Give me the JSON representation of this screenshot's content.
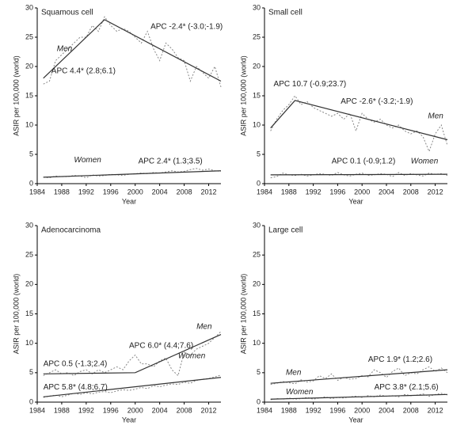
{
  "chart_data": [
    {
      "type": "line",
      "title": "Squamous cell",
      "xlabel": "Year",
      "ylabel": "ASIR per 100,000 (world)",
      "x": [
        1985,
        1986,
        1987,
        1988,
        1989,
        1990,
        1991,
        1992,
        1993,
        1994,
        1995,
        1996,
        1997,
        1998,
        1999,
        2000,
        2001,
        2002,
        2003,
        2004,
        2005,
        2006,
        2007,
        2008,
        2009,
        2010,
        2011,
        2012,
        2013,
        2014
      ],
      "xlim": [
        1984,
        2014
      ],
      "xticks": [
        1984,
        1988,
        1992,
        1996,
        2000,
        2004,
        2008,
        2012
      ],
      "ylim": [
        0,
        30
      ],
      "yticks": [
        0,
        5,
        10,
        15,
        20,
        25,
        30
      ],
      "series": [
        {
          "name": "Men",
          "color": "#333333",
          "values": [
            17,
            17.5,
            21,
            22,
            23,
            24,
            25,
            25,
            27,
            26,
            28.5,
            27,
            26,
            26.5,
            26,
            25,
            24,
            26,
            23,
            21,
            24,
            23,
            21.5,
            21,
            17.5,
            20,
            19,
            18,
            20,
            16.5
          ],
          "trend_x": [
            1985,
            1995,
            2014
          ],
          "trend_values": [
            18,
            28,
            17.5
          ]
        },
        {
          "name": "Women",
          "color": "#333333",
          "values": [
            1.1,
            1.0,
            1.3,
            1.2,
            1.2,
            1.4,
            1.3,
            1.0,
            1.5,
            1.3,
            1.4,
            1.6,
            1.5,
            1.4,
            1.6,
            1.7,
            1.8,
            1.7,
            1.9,
            1.8,
            2.0,
            2.2,
            2.0,
            2.1,
            2.4,
            2.6,
            2.3,
            2.5,
            2.2,
            2.1
          ],
          "trend_x": [
            1985,
            2014
          ],
          "trend_values": [
            1.1,
            2.2
          ]
        }
      ],
      "annotations": [
        "APC 4.4* (2.8;6.1)",
        "APC -2.4* (-3.0;-1.9)",
        "APC 2.4* (1.3;3.5)"
      ]
    },
    {
      "type": "line",
      "title": "Small cell",
      "xlabel": "Year",
      "ylabel": "ASIR per 100,000 (world)",
      "x": [
        1985,
        1986,
        1987,
        1988,
        1989,
        1990,
        1991,
        1992,
        1993,
        1994,
        1995,
        1996,
        1997,
        1998,
        1999,
        2000,
        2001,
        2002,
        2003,
        2004,
        2005,
        2006,
        2007,
        2008,
        2009,
        2010,
        2011,
        2012,
        2013,
        2014
      ],
      "xlim": [
        1984,
        2014
      ],
      "xticks": [
        1984,
        1988,
        1992,
        1996,
        2000,
        2004,
        2008,
        2012
      ],
      "ylim": [
        0,
        30
      ],
      "yticks": [
        0,
        5,
        10,
        15,
        20,
        25,
        30
      ],
      "series": [
        {
          "name": "Men",
          "color": "#333333",
          "values": [
            9,
            11,
            12.5,
            13.5,
            15,
            13.5,
            14,
            13,
            12.5,
            12,
            11.5,
            12,
            11,
            12,
            9,
            12,
            11,
            10.5,
            11,
            10,
            9.5,
            10,
            9,
            8.5,
            9,
            8,
            5.5,
            8.5,
            10,
            6.5
          ],
          "trend_x": [
            1985,
            1989,
            2014
          ],
          "trend_values": [
            9.5,
            14.2,
            7.5
          ]
        },
        {
          "name": "Women",
          "color": "#333333",
          "values": [
            1.0,
            1.2,
            1.8,
            1.5,
            1.4,
            1.6,
            1.3,
            1.5,
            1.7,
            1.6,
            1.4,
            1.9,
            1.5,
            1.3,
            1.6,
            1.8,
            1.4,
            1.5,
            1.7,
            1.6,
            1.2,
            1.9,
            1.4,
            1.7,
            1.5,
            1.3,
            1.8,
            1.6,
            1.7,
            1.4
          ],
          "trend_x": [
            1985,
            2014
          ],
          "trend_values": [
            1.5,
            1.6
          ]
        }
      ],
      "annotations": [
        "APC 10.7 (-0.9;23.7)",
        "APC -2.6* (-3.2;-1.9)",
        "APC 0.1 (-0.9;1.2)"
      ]
    },
    {
      "type": "line",
      "title": "Adenocarcinoma",
      "xlabel": "Year",
      "ylabel": "ASIR per 100,000 (world)",
      "x": [
        1985,
        1986,
        1987,
        1988,
        1989,
        1990,
        1991,
        1992,
        1993,
        1994,
        1995,
        1996,
        1997,
        1998,
        1999,
        2000,
        2001,
        2002,
        2003,
        2004,
        2005,
        2006,
        2007,
        2008,
        2009,
        2010,
        2011,
        2012,
        2013,
        2014
      ],
      "xlim": [
        1984,
        2014
      ],
      "xticks": [
        1984,
        1988,
        1992,
        1996,
        2000,
        2004,
        2008,
        2012
      ],
      "ylim": [
        0,
        30
      ],
      "yticks": [
        0,
        5,
        10,
        15,
        20,
        25,
        30
      ],
      "series": [
        {
          "name": "Men",
          "color": "#333333",
          "values": [
            4.5,
            5,
            5.5,
            4.8,
            5,
            4.5,
            5.2,
            5.5,
            4.8,
            5.5,
            5,
            5.5,
            6,
            5.5,
            7,
            8,
            6.5,
            6.5,
            6,
            7,
            7.5,
            5.5,
            4.5,
            8.5,
            8,
            9,
            9.5,
            10,
            11,
            12
          ],
          "trend_x": [
            1985,
            2000,
            2014
          ],
          "trend_values": [
            4.8,
            5.0,
            11.5
          ]
        },
        {
          "name": "Women",
          "color": "#333333",
          "values": [
            0.8,
            1,
            1.2,
            0.9,
            1.2,
            1.5,
            1.3,
            1.6,
            1.4,
            1.7,
            1.8,
            1.6,
            1.9,
            2.1,
            2.0,
            2.2,
            2.5,
            2.3,
            2.8,
            2.6,
            2.9,
            3.1,
            3.0,
            3.4,
            3.2,
            3.7,
            3.9,
            4.0,
            4.3,
            4.6
          ],
          "trend_x": [
            1985,
            2014
          ],
          "trend_values": [
            0.9,
            4.2
          ]
        }
      ],
      "annotations": [
        "APC 0.5 (-1.3;2.4)",
        "APC 6.0* (4.4;7.6)",
        "APC 5.8* (4.8;6.7)"
      ]
    },
    {
      "type": "line",
      "title": "Large cell",
      "xlabel": "Year",
      "ylabel": "ASIR per 100,000 (world)",
      "x": [
        1985,
        1986,
        1987,
        1988,
        1989,
        1990,
        1991,
        1992,
        1993,
        1994,
        1995,
        1996,
        1997,
        1998,
        1999,
        2000,
        2001,
        2002,
        2003,
        2004,
        2005,
        2006,
        2007,
        2008,
        2009,
        2010,
        2011,
        2012,
        2013,
        2014
      ],
      "xlim": [
        1984,
        2014
      ],
      "xticks": [
        1984,
        1988,
        1992,
        1996,
        2000,
        2004,
        2008,
        2012
      ],
      "ylim": [
        0,
        30
      ],
      "yticks": [
        0,
        5,
        10,
        15,
        20,
        25,
        30
      ],
      "series": [
        {
          "name": "Men",
          "color": "#333333",
          "values": [
            3,
            3.2,
            3.5,
            3.3,
            3.1,
            3.8,
            3.4,
            3.6,
            4.5,
            4.0,
            4.8,
            3.7,
            4.2,
            3.9,
            4.0,
            4.5,
            4.3,
            5.5,
            5.0,
            4.2,
            5.2,
            5.8,
            4.5,
            5.0,
            4.8,
            5.5,
            6.0,
            5.2,
            5.8,
            5.0
          ],
          "trend_x": [
            1985,
            2014
          ],
          "trend_values": [
            3.2,
            5.5
          ]
        },
        {
          "name": "Women",
          "color": "#333333",
          "values": [
            0.4,
            0.6,
            0.5,
            0.7,
            0.5,
            0.6,
            0.8,
            0.5,
            0.7,
            0.9,
            0.6,
            0.8,
            0.7,
            0.9,
            1.0,
            0.8,
            1.1,
            0.9,
            1.2,
            1.0,
            1.1,
            0.9,
            1.3,
            1.1,
            1.2,
            1.4,
            1.0,
            1.3,
            1.5,
            1.2
          ],
          "trend_x": [
            1985,
            2014
          ],
          "trend_values": [
            0.5,
            1.3
          ]
        }
      ],
      "annotations": [
        "APC 1.9* (1.2;2.6)",
        "APC 3.8* (2.1;5.6)"
      ]
    }
  ]
}
